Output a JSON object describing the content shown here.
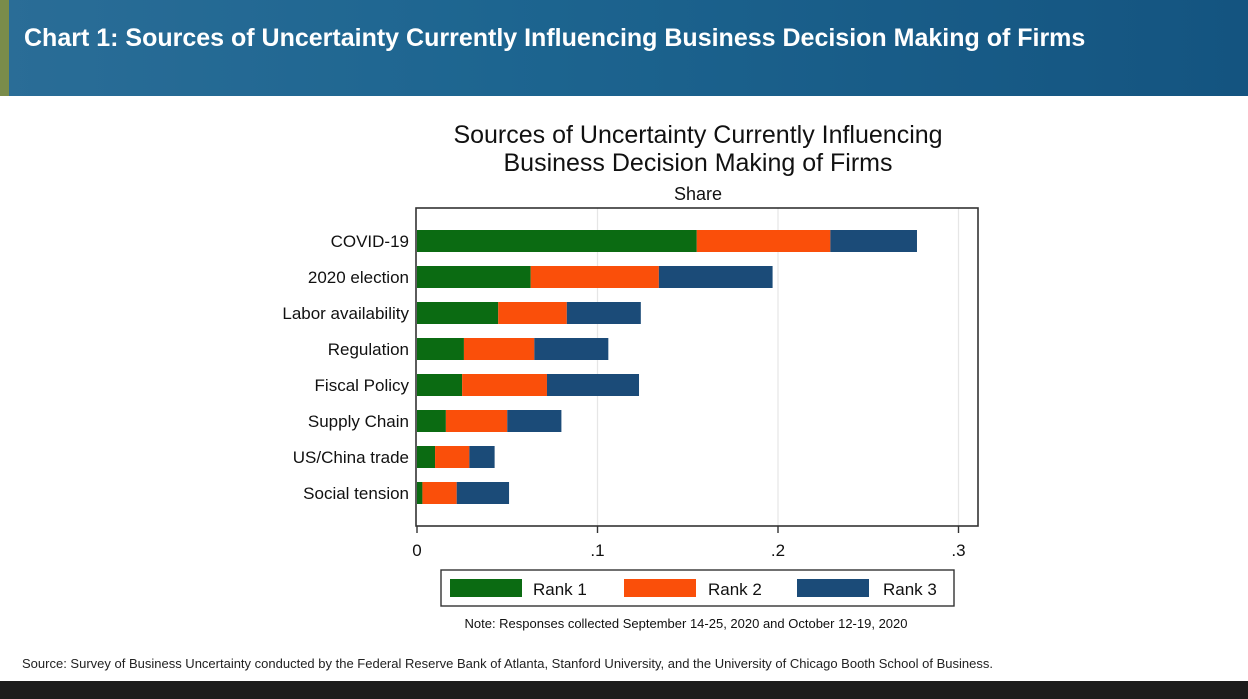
{
  "header": {
    "title": "Chart 1: Sources of Uncertainty Currently Influencing Business Decision Making of Firms"
  },
  "chart_data": {
    "type": "bar",
    "orientation": "horizontal",
    "stacked": true,
    "title_lines": [
      "Sources of Uncertainty Currently Influencing",
      "Business Decision Making of Firms"
    ],
    "subtitle": "Share",
    "categories": [
      "COVID-19",
      "2020 election",
      "Labor availability",
      "Regulation",
      "Fiscal Policy",
      "Supply Chain",
      "US/China trade",
      "Social tension"
    ],
    "series": [
      {
        "name": "Rank 1",
        "color": "#0b6b12",
        "values": [
          0.155,
          0.063,
          0.045,
          0.026,
          0.025,
          0.016,
          0.01,
          0.003
        ]
      },
      {
        "name": "Rank 2",
        "color": "#fa4f0a",
        "values": [
          0.074,
          0.071,
          0.038,
          0.039,
          0.047,
          0.034,
          0.019,
          0.019
        ]
      },
      {
        "name": "Rank 3",
        "color": "#1b4b78",
        "values": [
          0.048,
          0.063,
          0.041,
          0.041,
          0.051,
          0.03,
          0.014,
          0.029
        ]
      }
    ],
    "xlim": [
      0,
      0.3
    ],
    "xticks": [
      0,
      0.1,
      0.2,
      0.3
    ],
    "xtick_labels": [
      "0",
      ".1",
      ".2",
      ".3"
    ],
    "grid": "vertical",
    "legend_position": "bottom",
    "note": "Note: Responses collected September 14-25, 2020 and October 12-19, 2020"
  },
  "footer": {
    "source": "Source: Survey of Business Uncertainty conducted by the Federal Reserve Bank of Atlanta, Stanford University, and the University of Chicago Booth School of Business."
  }
}
